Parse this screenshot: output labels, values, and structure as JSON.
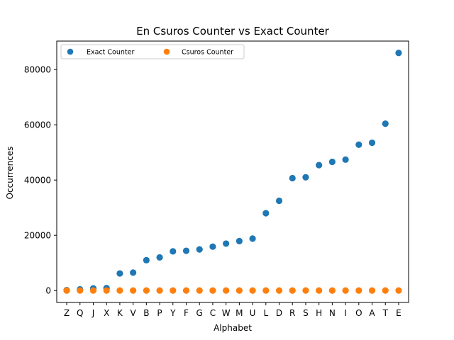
{
  "chart_data": {
    "type": "scatter",
    "title": "En Csuros Counter vs Exact Counter",
    "xlabel": "Alphabet",
    "ylabel": "Occurrences",
    "categories": [
      "Z",
      "Q",
      "J",
      "X",
      "K",
      "V",
      "B",
      "P",
      "Y",
      "F",
      "G",
      "C",
      "W",
      "M",
      "U",
      "L",
      "D",
      "R",
      "S",
      "H",
      "N",
      "I",
      "O",
      "A",
      "T",
      "E"
    ],
    "ylim": [
      -4300,
      90300
    ],
    "yticks": [
      0,
      20000,
      40000,
      60000,
      80000
    ],
    "ytick_labels": [
      "0",
      "20000",
      "40000",
      "60000",
      "80000"
    ],
    "grid": false,
    "legend_position": "top-left",
    "series": [
      {
        "name": "Exact Counter",
        "color": "#1f77b4",
        "values": [
          150,
          450,
          800,
          900,
          6200,
          6500,
          11000,
          12000,
          14200,
          14400,
          14900,
          15900,
          17000,
          17900,
          18800,
          28000,
          32500,
          40700,
          41000,
          45400,
          46600,
          47400,
          52800,
          53500,
          60400,
          86000
        ]
      },
      {
        "name": "Csuros Counter",
        "color": "#ff7f0e",
        "values": [
          10,
          15,
          15,
          15,
          20,
          20,
          20,
          20,
          20,
          20,
          20,
          20,
          20,
          20,
          20,
          25,
          25,
          25,
          25,
          25,
          25,
          25,
          25,
          25,
          25,
          25
        ]
      }
    ]
  }
}
